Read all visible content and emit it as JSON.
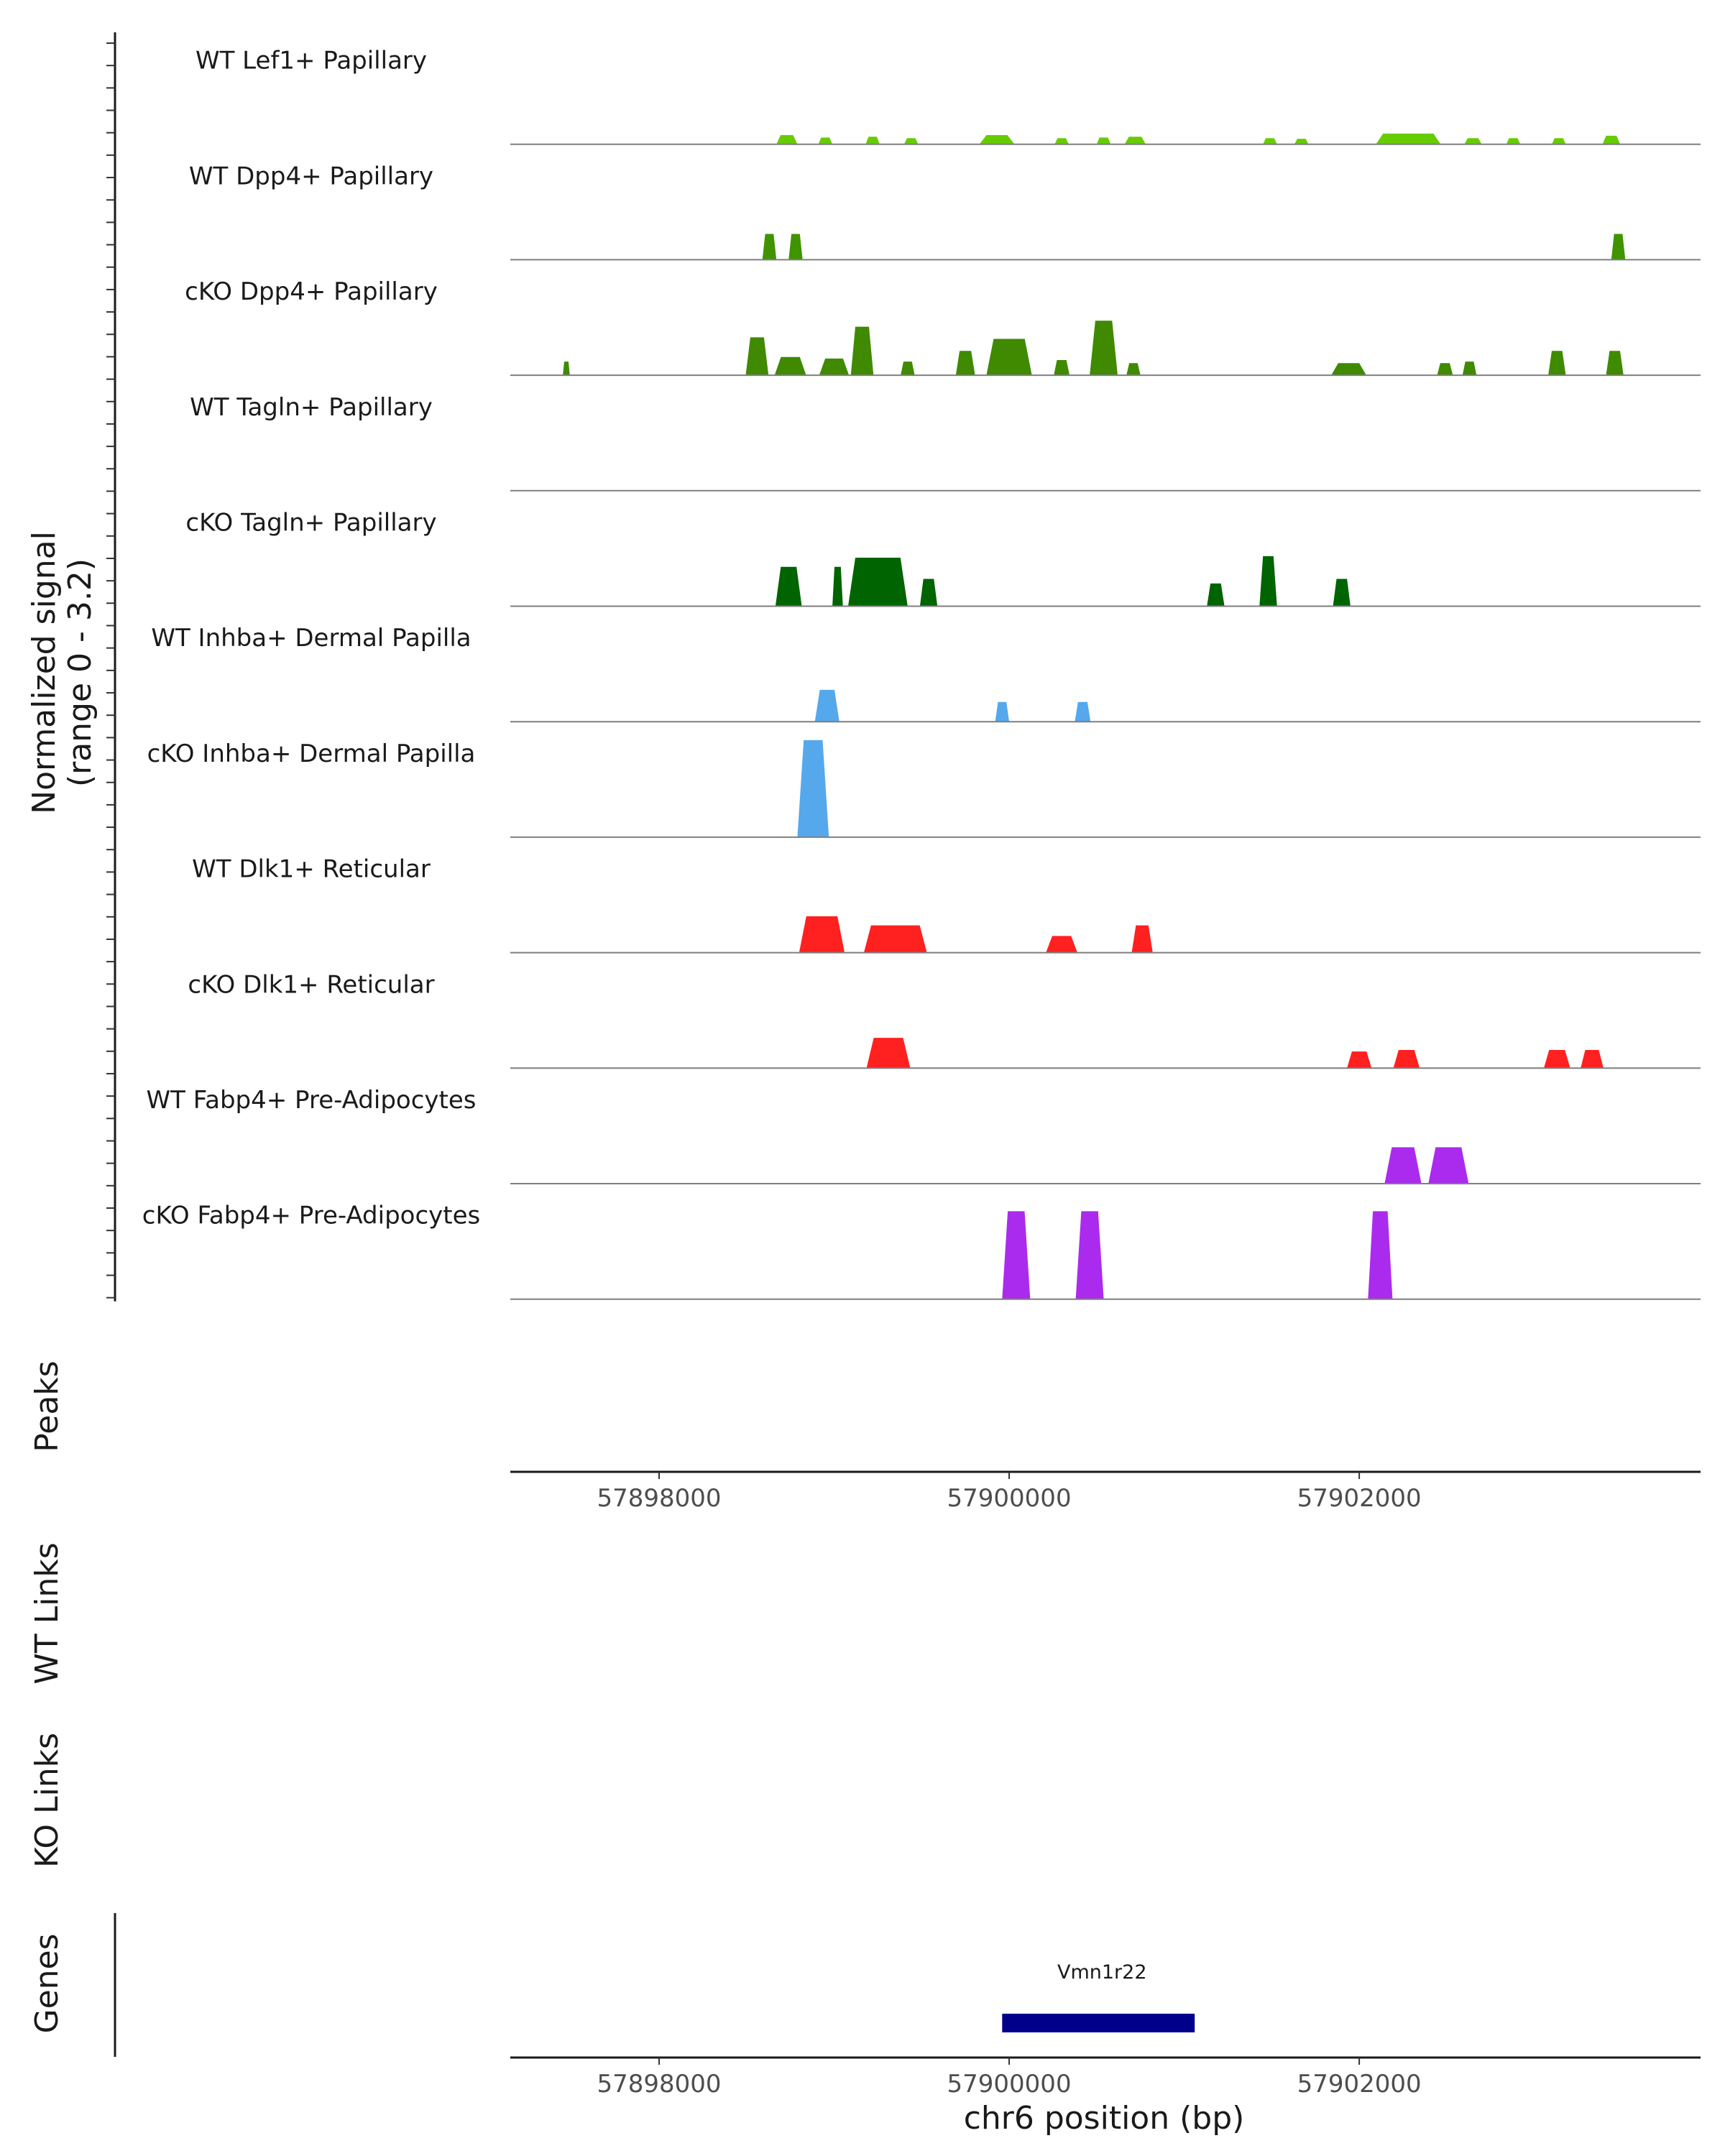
{
  "chart_data": {
    "type": "area",
    "title": "",
    "chromosome": "chr6",
    "xlim": [
      57897150,
      57903950
    ],
    "ylim": [
      0,
      3.2
    ],
    "y_axis_title": [
      "Normalized signal",
      "(range 0 - 3.2)"
    ],
    "x_axis_title": "chr6 position (bp)",
    "x_ticks": [
      57898000,
      57900000,
      57902000
    ],
    "x_tick_labels": [
      "57898000",
      "57900000",
      "57902000"
    ],
    "tracks": [
      {
        "name": "WT Lef1+ Papillary",
        "color": "#66CC00",
        "peaks": [
          [
            57898730,
            120,
            0.3
          ],
          [
            57898950,
            80,
            0.22
          ],
          [
            57899220,
            80,
            0.25
          ],
          [
            57899440,
            80,
            0.2
          ],
          [
            57899930,
            200,
            0.3
          ],
          [
            57900300,
            80,
            0.2
          ],
          [
            57900540,
            80,
            0.22
          ],
          [
            57900720,
            120,
            0.25
          ],
          [
            57901490,
            80,
            0.2
          ],
          [
            57901670,
            80,
            0.18
          ],
          [
            57902280,
            370,
            0.35
          ],
          [
            57902650,
            100,
            0.2
          ],
          [
            57902880,
            80,
            0.2
          ],
          [
            57903140,
            80,
            0.2
          ],
          [
            57903440,
            100,
            0.28
          ]
        ]
      },
      {
        "name": "WT Dpp4+ Papillary",
        "color": "#3F9400",
        "peaks": [
          [
            57898630,
            80,
            0.85
          ],
          [
            57898780,
            80,
            0.85
          ],
          [
            57903480,
            80,
            0.85
          ]
        ]
      },
      {
        "name": "cKO Dpp4+ Papillary",
        "color": "#3F8A00",
        "peaks": [
          [
            57897470,
            40,
            0.45
          ],
          [
            57898560,
            130,
            1.25
          ],
          [
            57898750,
            180,
            0.6
          ],
          [
            57899000,
            170,
            0.55
          ],
          [
            57899160,
            130,
            1.6
          ],
          [
            57899420,
            80,
            0.45
          ],
          [
            57899750,
            110,
            0.8
          ],
          [
            57900000,
            260,
            1.2
          ],
          [
            57900300,
            90,
            0.5
          ],
          [
            57900540,
            160,
            1.8
          ],
          [
            57900710,
            80,
            0.4
          ],
          [
            57901940,
            200,
            0.4
          ],
          [
            57902490,
            90,
            0.4
          ],
          [
            57902630,
            80,
            0.45
          ],
          [
            57903130,
            100,
            0.8
          ],
          [
            57903460,
            100,
            0.8
          ]
        ]
      },
      {
        "name": "WT Tagln+ Papillary",
        "color": "#006400",
        "peaks": []
      },
      {
        "name": "cKO Tagln+ Papillary",
        "color": "#006400",
        "peaks": [
          [
            57898740,
            150,
            1.3
          ],
          [
            57899020,
            60,
            1.3
          ],
          [
            57899250,
            340,
            1.6
          ],
          [
            57899540,
            100,
            0.9
          ],
          [
            57901180,
            100,
            0.75
          ],
          [
            57901480,
            100,
            1.65
          ],
          [
            57901900,
            100,
            0.9
          ]
        ]
      },
      {
        "name": "WT Inhba+ Dermal Papilla",
        "color": "#56A8EC",
        "peaks": [
          [
            57898960,
            140,
            1.05
          ],
          [
            57899960,
            80,
            0.65
          ],
          [
            57900420,
            90,
            0.65
          ]
        ]
      },
      {
        "name": "cKO Inhba+ Dermal Papilla",
        "color": "#56A8EC",
        "peaks": [
          [
            57898880,
            180,
            3.2
          ]
        ]
      },
      {
        "name": "WT Dlk1+ Reticular",
        "color": "#FF2020",
        "peaks": [
          [
            57898930,
            260,
            1.2
          ],
          [
            57899350,
            360,
            0.9
          ],
          [
            57900300,
            180,
            0.55
          ],
          [
            57900760,
            120,
            0.9
          ]
        ]
      },
      {
        "name": "cKO Dlk1+ Reticular",
        "color": "#FF2020",
        "peaks": [
          [
            57899310,
            250,
            1.0
          ],
          [
            57902000,
            140,
            0.55
          ],
          [
            57902270,
            150,
            0.6
          ],
          [
            57903130,
            150,
            0.6
          ],
          [
            57903330,
            130,
            0.6
          ]
        ]
      },
      {
        "name": "WT Fabp4+ Pre-Adipocytes",
        "color": "#AA2BEE",
        "peaks": [
          [
            57902250,
            210,
            1.2
          ],
          [
            57902510,
            230,
            1.2
          ]
        ]
      },
      {
        "name": "cKO Fabp4+ Pre-Adipocytes",
        "color": "#AA2BEE",
        "peaks": [
          [
            57900040,
            160,
            2.9
          ],
          [
            57900460,
            160,
            2.9
          ],
          [
            57902120,
            140,
            2.9
          ]
        ]
      }
    ],
    "side_labels": [
      "Peaks",
      "WT Links",
      "KO Links",
      "Genes"
    ],
    "genes": [
      {
        "name": "Vmn1r22",
        "start": 57899960,
        "end": 57901060,
        "color": "#00008B"
      }
    ]
  }
}
